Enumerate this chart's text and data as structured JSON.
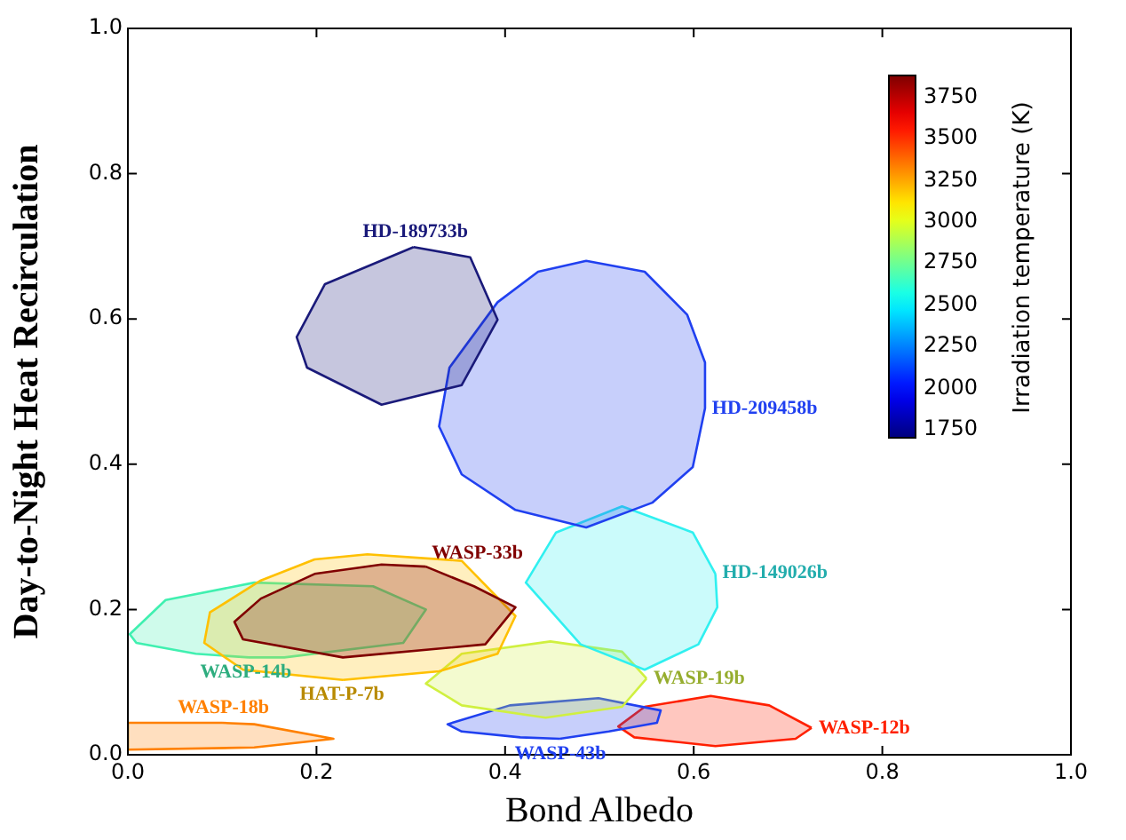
{
  "chart_data": {
    "type": "area",
    "xlabel": "Bond Albedo",
    "ylabel": "Day-to-Night Heat Recirculation",
    "clabel": "Irradiation temperature (K)",
    "xticks": [
      {
        "value": 0,
        "label": "0.0"
      },
      {
        "value": 0.2,
        "label": "0.2"
      },
      {
        "value": 0.4,
        "label": "0.4"
      },
      {
        "value": 0.6,
        "label": "0.6"
      },
      {
        "value": 0.8,
        "label": "0.8"
      },
      {
        "value": 1,
        "label": "1.0"
      }
    ],
    "yticks": [
      {
        "value": 0,
        "label": "0.0"
      },
      {
        "value": 0.2,
        "label": "0.2"
      },
      {
        "value": 0.4,
        "label": "0.4"
      },
      {
        "value": 0.6,
        "label": "0.6"
      },
      {
        "value": 0.8,
        "label": "0.8"
      },
      {
        "value": 1,
        "label": "1.0"
      }
    ],
    "xlim": [
      0,
      1
    ],
    "ylim": [
      0,
      1
    ],
    "annotations": [
      "1750",
      "2000",
      "2250",
      "2500",
      "2750",
      "3000",
      "3250",
      "3500",
      "3750"
    ],
    "series": [
      {
        "name": "HD-189733b",
        "color": "#1a1a7a",
        "x": [
          0.303,
          0.363,
          0.392,
          0.354,
          0.269,
          0.19,
          0.179,
          0.209
        ],
        "values": [
          0.699,
          0.685,
          0.599,
          0.509,
          0.482,
          0.533,
          0.575,
          0.648
        ]
      },
      {
        "name": "HD-209458b",
        "color": "#2040f0",
        "x": [
          0.612,
          0.599,
          0.556,
          0.486,
          0.411,
          0.354,
          0.33,
          0.341,
          0.392,
          0.435,
          0.486,
          0.548,
          0.593,
          0.612
        ],
        "values": [
          0.477,
          0.396,
          0.347,
          0.313,
          0.337,
          0.386,
          0.452,
          0.533,
          0.623,
          0.665,
          0.68,
          0.665,
          0.606,
          0.54
        ]
      },
      {
        "name": "HD-149026b",
        "color": "#30f0f0",
        "x": [
          0.623,
          0.625,
          0.605,
          0.548,
          0.48,
          0.422,
          0.454,
          0.524,
          0.599
        ],
        "values": [
          0.249,
          0.203,
          0.152,
          0.117,
          0.152,
          0.237,
          0.306,
          0.342,
          0.306
        ]
      },
      {
        "name": "WASP-33b",
        "color": "#800000",
        "x": [
          0.316,
          0.367,
          0.411,
          0.379,
          0.228,
          0.122,
          0.113,
          0.141,
          0.198,
          0.269
        ],
        "values": [
          0.259,
          0.232,
          0.203,
          0.152,
          0.134,
          0.159,
          0.183,
          0.215,
          0.249,
          0.262
        ]
      },
      {
        "name": "HAT-P-7b",
        "color": "#ffc000",
        "x": [
          0.228,
          0.122,
          0.081,
          0.087,
          0.141,
          0.198,
          0.254,
          0.354,
          0.411,
          0.392,
          0.33
        ],
        "values": [
          0.103,
          0.117,
          0.154,
          0.196,
          0.24,
          0.269,
          0.276,
          0.267,
          0.191,
          0.139,
          0.115
        ]
      },
      {
        "name": "WASP-14b",
        "color": "#40f0b0",
        "x": [
          0.128,
          0.072,
          0.009,
          0.002,
          0.04,
          0.134,
          0.26,
          0.316,
          0.292,
          0.166
        ],
        "values": [
          0.134,
          0.139,
          0.154,
          0.166,
          0.213,
          0.237,
          0.232,
          0.2,
          0.154,
          0.134
        ]
      },
      {
        "name": "WASP-18b",
        "color": "#ff8000",
        "x": [
          0.1,
          0.134,
          0.218,
          0.134,
          0,
          0
        ],
        "values": [
          0.044,
          0.042,
          0.022,
          0.01,
          0.007,
          0.044
        ]
      },
      {
        "name": "WASP-19b",
        "color": "#d0f040",
        "x": [
          0.55,
          0.524,
          0.443,
          0.354,
          0.316,
          0.354,
          0.448,
          0.524
        ],
        "values": [
          0.105,
          0.066,
          0.051,
          0.068,
          0.098,
          0.139,
          0.156,
          0.142
        ]
      },
      {
        "name": "WASP-43b",
        "color": "#2040f0",
        "x": [
          0.458,
          0.416,
          0.354,
          0.339,
          0.405,
          0.499,
          0.565,
          0.561,
          0.51
        ],
        "values": [
          0.022,
          0.024,
          0.032,
          0.042,
          0.068,
          0.078,
          0.061,
          0.044,
          0.032
        ]
      },
      {
        "name": "WASP-12b",
        "color": "#ff2000",
        "x": [
          0.725,
          0.708,
          0.623,
          0.537,
          0.52,
          0.548,
          0.618,
          0.68
        ],
        "values": [
          0.037,
          0.022,
          0.012,
          0.024,
          0.039,
          0.066,
          0.081,
          0.068
        ]
      }
    ]
  }
}
